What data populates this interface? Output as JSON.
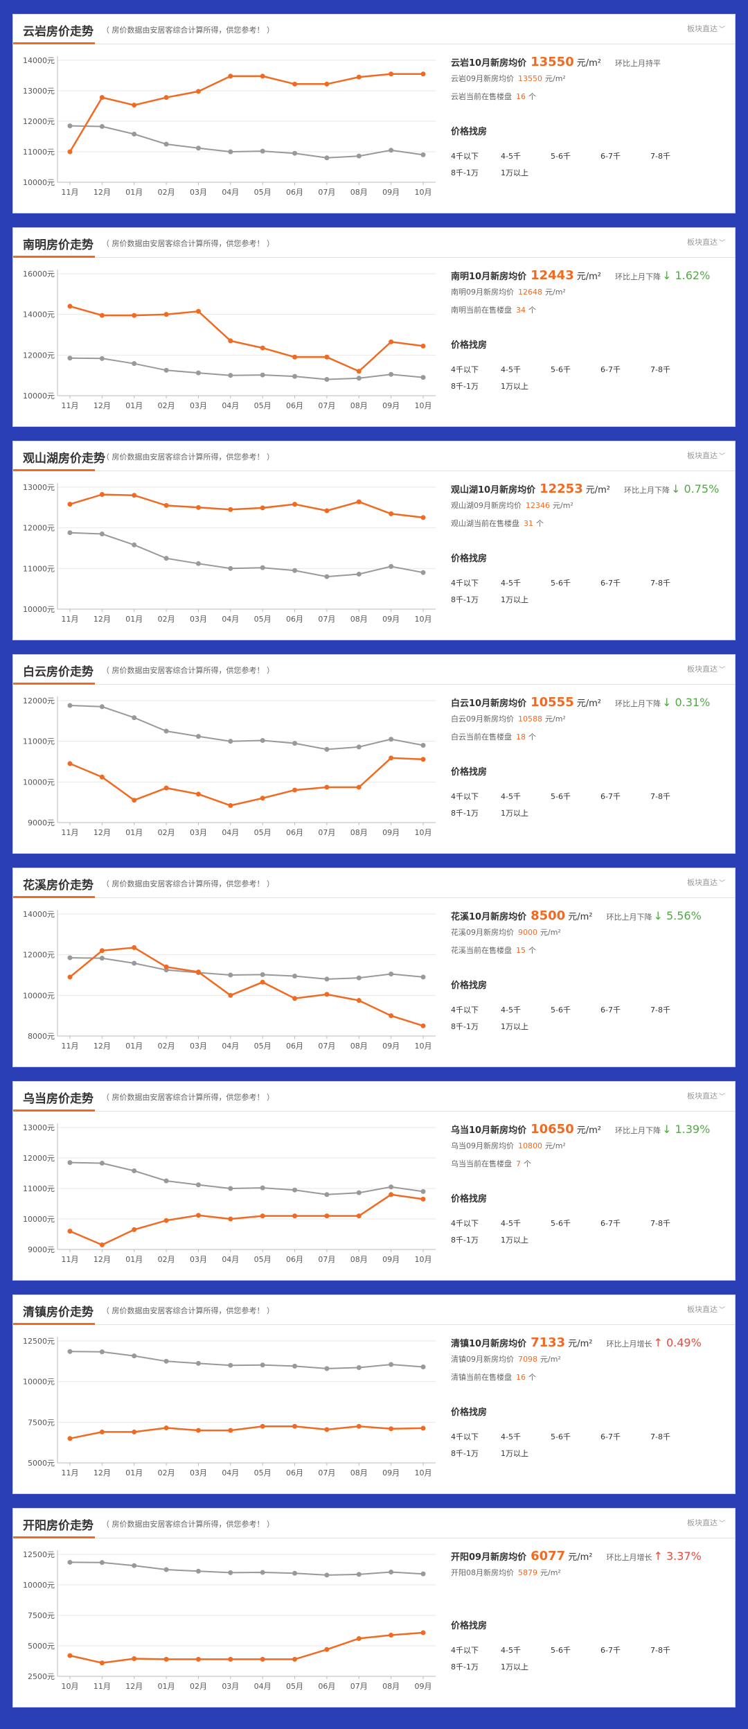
{
  "colors": {
    "accent": "#f06a22",
    "avg": "#999999",
    "down": "#52a944",
    "up": "#e94b3c",
    "frame": "#2a3eb5"
  },
  "common": {
    "note": "（ 房价数据由安居客综合计算所得，供您参考！ ）",
    "link": "板块直达",
    "link_icon": "chevron-down-icon",
    "find_title": "价格找房",
    "price_unit": "元/m²",
    "count_unit": "个",
    "filters": [
      "4千以下",
      "4-5千",
      "5-6千",
      "6-7千",
      "7-8千",
      "8千-1万",
      "1万以上"
    ]
  },
  "panels": [
    {
      "title": "云岩房价走势",
      "price_label": "云岩10月新房均价",
      "price": "13550",
      "ratio": "环比上月持平",
      "ratio_num": "",
      "ratio_dir": "",
      "prev_label": "云岩09月新房均价",
      "prev": "13550",
      "prev_unit": "元/m²",
      "count_label": "云岩当前在售楼盘",
      "count": "16",
      "count_unit": "个"
    },
    {
      "title": "南明房价走势",
      "price_label": "南明10月新房均价",
      "price": "12443",
      "ratio": "环比上月下降",
      "ratio_num": "↓ 1.62%",
      "ratio_dir": "down",
      "prev_label": "南明09月新房均价",
      "prev": "12648",
      "prev_unit": "元/m²",
      "count_label": "南明当前在售楼盘",
      "count": "34",
      "count_unit": "个"
    },
    {
      "title": "观山湖房价走势",
      "price_label": "观山湖10月新房均价",
      "price": "12253",
      "ratio": "环比上月下降",
      "ratio_num": "↓ 0.75%",
      "ratio_dir": "down",
      "prev_label": "观山湖09月新房均价",
      "prev": "12346",
      "prev_unit": "元/m²",
      "count_label": "观山湖当前在售楼盘",
      "count": "31",
      "count_unit": "个"
    },
    {
      "title": "白云房价走势",
      "price_label": "白云10月新房均价",
      "price": "10555",
      "ratio": "环比上月下降",
      "ratio_num": "↓ 0.31%",
      "ratio_dir": "down",
      "prev_label": "白云09月新房均价",
      "prev": "10588",
      "prev_unit": "元/m²",
      "count_label": "白云当前在售楼盘",
      "count": "18",
      "count_unit": "个"
    },
    {
      "title": "花溪房价走势",
      "price_label": "花溪10月新房均价",
      "price": "8500",
      "ratio": "环比上月下降",
      "ratio_num": "↓ 5.56%",
      "ratio_dir": "down",
      "prev_label": "花溪09月新房均价",
      "prev": "9000",
      "prev_unit": "元/m²",
      "count_label": "花溪当前在售楼盘",
      "count": "15",
      "count_unit": "个"
    },
    {
      "title": "乌当房价走势",
      "price_label": "乌当10月新房均价",
      "price": "10650",
      "ratio": "环比上月下降",
      "ratio_num": "↓ 1.39%",
      "ratio_dir": "down",
      "prev_label": "乌当09月新房均价",
      "prev": "10800",
      "prev_unit": "元/m²",
      "count_label": "乌当当前在售楼盘",
      "count": "7",
      "count_unit": "个"
    },
    {
      "title": "清镇房价走势",
      "price_label": "清镇10月新房均价",
      "price": "7133",
      "ratio": "环比上月增长",
      "ratio_num": "↑ 0.49%",
      "ratio_dir": "up",
      "prev_label": "清镇09月新房均价",
      "prev": "7098",
      "prev_unit": "元/m²",
      "count_label": "清镇当前在售楼盘",
      "count": "16",
      "count_unit": "个"
    },
    {
      "title": "开阳房价走势",
      "price_label": "开阳09月新房均价",
      "price": "6077",
      "ratio": "环比上月增长",
      "ratio_num": "↑ 3.37%",
      "ratio_dir": "up",
      "prev_label": "开阳08月新房均价",
      "prev": "5879",
      "prev_unit": "元/m²",
      "count_label": "",
      "count": "",
      "count_unit": ""
    }
  ],
  "chart_data": [
    {
      "type": "line",
      "categories": [
        "11月",
        "12月",
        "01月",
        "02月",
        "03月",
        "04月",
        "05月",
        "06月",
        "07月",
        "08月",
        "09月",
        "10月"
      ],
      "yticks": [
        10000,
        11000,
        12000,
        13000,
        14000
      ],
      "ytick_labels": [
        "10000元",
        "11000元",
        "12000元",
        "13000元",
        "14000元"
      ],
      "ylim": [
        10000,
        14000
      ],
      "series": [
        {
          "name": "",
          "color": "#f06a22",
          "values": [
            11000,
            12780,
            12530,
            12780,
            12980,
            13480,
            13480,
            13220,
            13220,
            13450,
            13550,
            13550
          ]
        },
        {
          "name": "",
          "color": "#999999",
          "values": [
            11850,
            11830,
            11580,
            11250,
            11120,
            11000,
            11020,
            10950,
            10800,
            10860,
            11050,
            10900
          ]
        }
      ]
    },
    {
      "type": "line",
      "categories": [
        "11月",
        "12月",
        "01月",
        "02月",
        "03月",
        "04月",
        "05月",
        "06月",
        "07月",
        "08月",
        "09月",
        "10月"
      ],
      "yticks": [
        10000,
        12000,
        14000,
        16000
      ],
      "ytick_labels": [
        "10000元",
        "12000元",
        "14000元",
        "16000元"
      ],
      "ylim": [
        10000,
        16000
      ],
      "series": [
        {
          "name": "",
          "color": "#f06a22",
          "values": [
            14400,
            13950,
            13950,
            14000,
            14150,
            12700,
            12350,
            11900,
            11900,
            11200,
            12648,
            12443
          ]
        },
        {
          "name": "",
          "color": "#999999",
          "values": [
            11850,
            11830,
            11580,
            11250,
            11120,
            11000,
            11020,
            10950,
            10800,
            10860,
            11050,
            10900
          ]
        }
      ]
    },
    {
      "type": "line",
      "categories": [
        "11月",
        "12月",
        "01月",
        "02月",
        "03月",
        "04月",
        "05月",
        "06月",
        "07月",
        "08月",
        "09月",
        "10月"
      ],
      "yticks": [
        10000,
        11000,
        12000,
        13000
      ],
      "ytick_labels": [
        "10000元",
        "11000元",
        "12000元",
        "13000元"
      ],
      "ylim": [
        10000,
        13000
      ],
      "series": [
        {
          "name": "",
          "color": "#f06a22",
          "values": [
            12580,
            12820,
            12800,
            12550,
            12500,
            12450,
            12490,
            12580,
            12420,
            12640,
            12346,
            12253
          ]
        },
        {
          "name": "",
          "color": "#999999",
          "values": [
            11880,
            11850,
            11580,
            11250,
            11120,
            11000,
            11020,
            10950,
            10800,
            10860,
            11050,
            10900
          ]
        }
      ]
    },
    {
      "type": "line",
      "categories": [
        "11月",
        "12月",
        "01月",
        "02月",
        "03月",
        "04月",
        "05月",
        "06月",
        "07月",
        "08月",
        "09月",
        "10月"
      ],
      "yticks": [
        9000,
        10000,
        11000,
        12000
      ],
      "ytick_labels": [
        "9000元",
        "10000元",
        "11000元",
        "12000元"
      ],
      "ylim": [
        9000,
        12000
      ],
      "series": [
        {
          "name": "",
          "color": "#f06a22",
          "values": [
            10450,
            10120,
            9550,
            9850,
            9700,
            9420,
            9600,
            9800,
            9870,
            9870,
            10588,
            10555
          ]
        },
        {
          "name": "",
          "color": "#999999",
          "values": [
            11880,
            11850,
            11580,
            11250,
            11120,
            11000,
            11020,
            10950,
            10800,
            10860,
            11050,
            10900
          ]
        }
      ]
    },
    {
      "type": "line",
      "categories": [
        "11月",
        "12月",
        "01月",
        "02月",
        "03月",
        "04月",
        "05月",
        "06月",
        "07月",
        "08月",
        "09月",
        "10月"
      ],
      "yticks": [
        8000,
        10000,
        12000,
        14000
      ],
      "ytick_labels": [
        "8000元",
        "10000元",
        "12000元",
        "14000元"
      ],
      "ylim": [
        8000,
        14000
      ],
      "series": [
        {
          "name": "",
          "color": "#f06a22",
          "values": [
            10900,
            12200,
            12350,
            11400,
            11150,
            10000,
            10650,
            9850,
            10050,
            9750,
            9000,
            8500
          ]
        },
        {
          "name": "",
          "color": "#999999",
          "values": [
            11850,
            11830,
            11580,
            11250,
            11120,
            11000,
            11020,
            10950,
            10800,
            10860,
            11050,
            10900
          ]
        }
      ]
    },
    {
      "type": "line",
      "categories": [
        "11月",
        "12月",
        "01月",
        "02月",
        "03月",
        "04月",
        "05月",
        "06月",
        "07月",
        "08月",
        "09月",
        "10月"
      ],
      "yticks": [
        9000,
        10000,
        11000,
        12000,
        13000
      ],
      "ytick_labels": [
        "9000元",
        "10000元",
        "11000元",
        "12000元",
        "13000元"
      ],
      "ylim": [
        9000,
        13000
      ],
      "series": [
        {
          "name": "",
          "color": "#f06a22",
          "values": [
            9600,
            9150,
            9650,
            9950,
            10120,
            10000,
            10100,
            10100,
            10100,
            10100,
            10800,
            10650
          ]
        },
        {
          "name": "",
          "color": "#999999",
          "values": [
            11850,
            11830,
            11580,
            11250,
            11120,
            11000,
            11020,
            10950,
            10800,
            10860,
            11050,
            10900
          ]
        }
      ]
    },
    {
      "type": "line",
      "categories": [
        "11月",
        "12月",
        "01月",
        "02月",
        "03月",
        "04月",
        "05月",
        "06月",
        "07月",
        "08月",
        "09月",
        "10月"
      ],
      "yticks": [
        5000,
        7500,
        10000,
        12500
      ],
      "ytick_labels": [
        "5000元",
        "7500元",
        "10000元",
        "12500元"
      ],
      "ylim": [
        5000,
        12500
      ],
      "series": [
        {
          "name": "",
          "color": "#f06a22",
          "values": [
            6500,
            6900,
            6900,
            7150,
            7000,
            7000,
            7250,
            7250,
            7050,
            7250,
            7098,
            7133
          ]
        },
        {
          "name": "",
          "color": "#999999",
          "values": [
            11850,
            11830,
            11580,
            11250,
            11120,
            11000,
            11020,
            10950,
            10800,
            10860,
            11050,
            10900
          ]
        }
      ]
    },
    {
      "type": "line",
      "categories": [
        "10月",
        "11月",
        "12月",
        "01月",
        "02月",
        "03月",
        "04月",
        "05月",
        "06月",
        "07月",
        "08月",
        "09月"
      ],
      "yticks": [
        2500,
        5000,
        7500,
        10000,
        12500
      ],
      "ytick_labels": [
        "2500元",
        "5000元",
        "7500元",
        "10000元",
        "12500元"
      ],
      "ylim": [
        2500,
        12500
      ],
      "series": [
        {
          "name": "",
          "color": "#f06a22",
          "values": [
            4200,
            3600,
            3950,
            3900,
            3900,
            3900,
            3900,
            3900,
            4700,
            5600,
            5879,
            6077
          ]
        },
        {
          "name": "",
          "color": "#999999",
          "values": [
            11850,
            11830,
            11580,
            11250,
            11120,
            11000,
            11020,
            10950,
            10800,
            10860,
            11050,
            10900
          ]
        }
      ]
    }
  ]
}
